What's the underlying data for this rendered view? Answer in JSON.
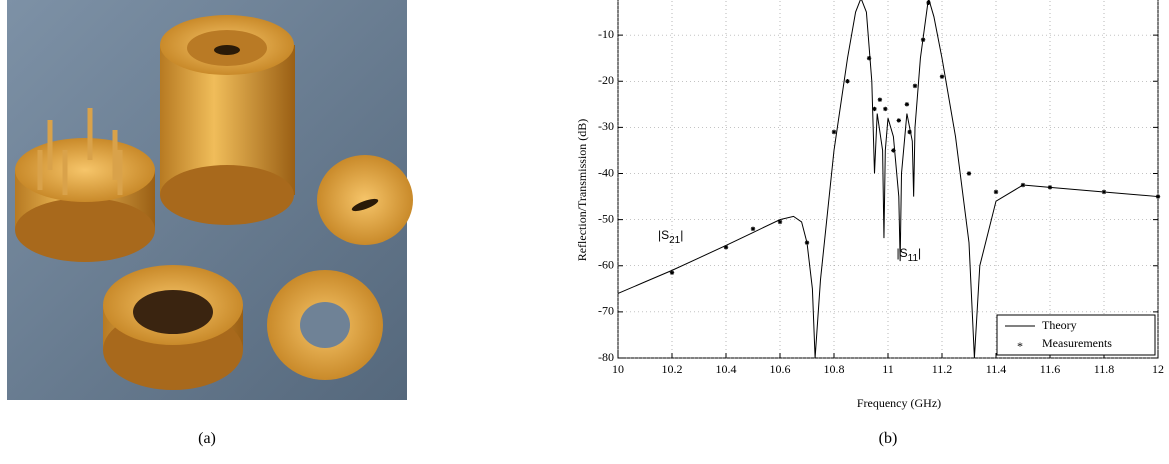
{
  "captions": [
    "(a)",
    "(b)"
  ],
  "chart_data": {
    "type": "line",
    "xlabel": "Frequency (GHz)",
    "ylabel": "Reflection/Transmission (dB)",
    "xlim": [
      10,
      12
    ],
    "ylim": [
      -80,
      0
    ],
    "xticks": [
      10,
      10.2,
      10.4,
      10.6,
      10.8,
      11,
      11.2,
      11.4,
      11.6,
      11.8,
      12
    ],
    "yticks": [
      -80,
      -70,
      -60,
      -50,
      -40,
      -30,
      -20,
      -10
    ],
    "grid": true,
    "legend": "lower right",
    "annotations": [
      {
        "base": "|S",
        "sub": "21",
        "tail": "|"
      },
      {
        "base": "|S",
        "sub": "11",
        "tail": "|"
      }
    ],
    "series": [
      {
        "name": "Theory",
        "color": "#000000",
        "marker": "line",
        "x": [
          10,
          10.1,
          10.2,
          10.3,
          10.4,
          10.5,
          10.6,
          10.65,
          10.68,
          10.7,
          10.72,
          10.73,
          10.75,
          10.8,
          10.85,
          10.88,
          10.9,
          10.92,
          10.94,
          10.95,
          10.96,
          10.98,
          10.985,
          10.99,
          11.0,
          11.02,
          11.04,
          11.045,
          11.05,
          11.07,
          11.09,
          11.095,
          11.1,
          11.12,
          11.15,
          11.17,
          11.2,
          11.25,
          11.3,
          11.32,
          11.34,
          11.4,
          11.5,
          11.6,
          11.8,
          12
        ],
        "values": [
          -66,
          -63.5,
          -61,
          -58.3,
          -55.6,
          -52.8,
          -50,
          -49.3,
          -50.5,
          -55,
          -65,
          -80,
          -63,
          -35,
          -15,
          -5,
          -2,
          -5,
          -20,
          -40,
          -27,
          -35,
          -54,
          -35,
          -28,
          -32,
          -45,
          -59,
          -40,
          -27,
          -33,
          -45,
          -30,
          -15,
          -2,
          -6,
          -15,
          -32,
          -55,
          -80,
          -60,
          -46,
          -42.5,
          -43,
          -44,
          -45
        ]
      },
      {
        "name": "Measurements",
        "color": "#000000",
        "marker": "star",
        "x": [
          10.2,
          10.4,
          10.5,
          10.6,
          10.7,
          10.8,
          10.85,
          10.9,
          10.93,
          10.95,
          10.97,
          10.99,
          11.02,
          11.04,
          11.07,
          11.08,
          11.1,
          11.13,
          11.15,
          11.15,
          11.2,
          11.3,
          11.4,
          11.5,
          11.6,
          11.8,
          12
        ],
        "values": [
          -61.5,
          -56,
          -52,
          -50.5,
          -55,
          -31,
          -20,
          -2,
          -15,
          -26,
          -24,
          -26,
          -35,
          -28.5,
          -25,
          -31,
          -21,
          -11,
          -3,
          -2,
          -19,
          -40,
          -44,
          -42.5,
          -43,
          -44,
          -45
        ]
      }
    ]
  }
}
